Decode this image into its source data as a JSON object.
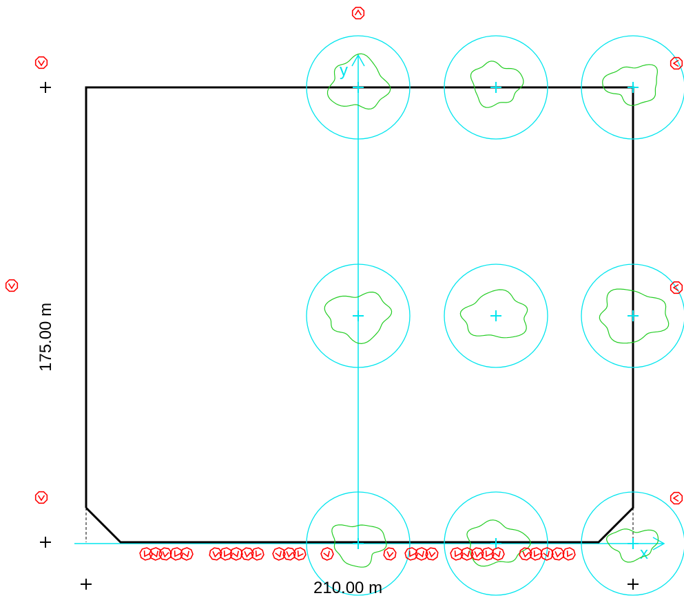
{
  "dimensions": {
    "width_label": "210.00 m",
    "height_label": "175.00 m"
  },
  "axes": {
    "x_label": "x",
    "y_label": "y"
  },
  "colors": {
    "outline": "#000000",
    "axis": "#00e5ee",
    "circle": "#00e5ee",
    "contour": "#22cc22",
    "marker": "#ff0000",
    "background": "#ffffff"
  },
  "grid": {
    "columns": 3,
    "rows": 3
  },
  "markers": {
    "icon": "stop-sign-marker-icon"
  }
}
